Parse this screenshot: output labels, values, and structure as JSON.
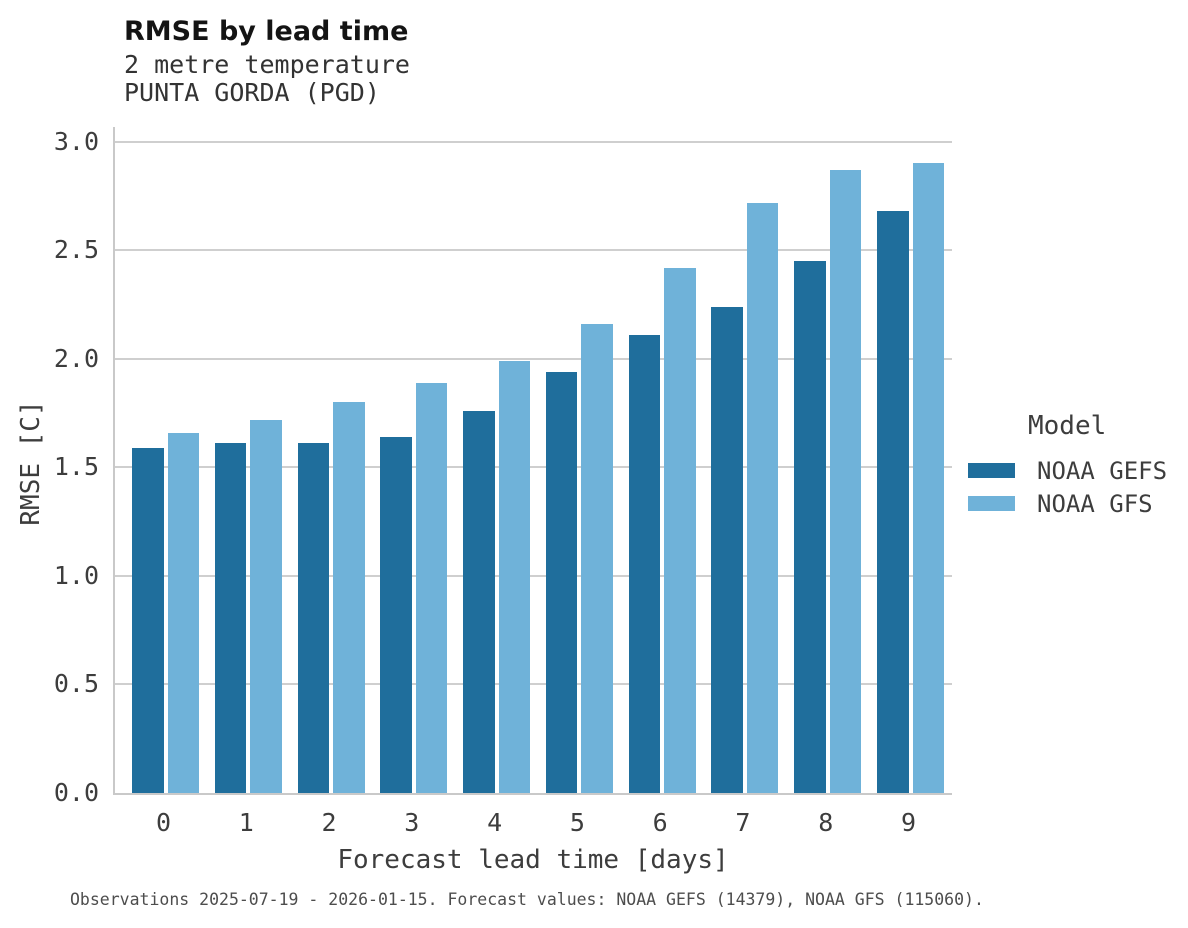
{
  "header": {
    "title": "RMSE by lead time",
    "subtitle_variable": "2 metre temperature",
    "subtitle_station": "PUNTA GORDA (PGD)"
  },
  "caption": "Observations 2025-07-19 - 2026-01-15. Forecast values: NOAA GEFS (14379), NOAA GFS (115060).",
  "legend": {
    "title": "Model",
    "items": [
      {
        "label": "NOAA GEFS",
        "color": "#1f6e9c"
      },
      {
        "label": "NOAA GFS",
        "color": "#6fb2d9"
      }
    ]
  },
  "chart_data": {
    "type": "bar",
    "title": "RMSE by lead time",
    "subtitle": "2 metre temperature, PUNTA GORDA (PGD)",
    "xlabel": "Forecast lead time [days]",
    "ylabel": "RMSE [C]",
    "categories": [
      "0",
      "1",
      "2",
      "3",
      "4",
      "5",
      "6",
      "7",
      "8",
      "9"
    ],
    "series": [
      {
        "name": "NOAA GEFS",
        "color": "#1f6e9c",
        "values": [
          1.59,
          1.61,
          1.61,
          1.64,
          1.76,
          1.94,
          2.11,
          2.24,
          2.45,
          2.68
        ]
      },
      {
        "name": "NOAA GFS",
        "color": "#6fb2d9",
        "values": [
          1.66,
          1.72,
          1.8,
          1.89,
          1.99,
          2.16,
          2.42,
          2.72,
          2.87,
          2.9
        ]
      }
    ],
    "ylim": [
      0,
      3.07
    ],
    "yticks": [
      0.0,
      0.5,
      1.0,
      1.5,
      2.0,
      2.5,
      3.0
    ],
    "grid": "horizontal",
    "grid_color": "#cfcfcf",
    "legend_position": "right",
    "legend_title": "Model"
  }
}
